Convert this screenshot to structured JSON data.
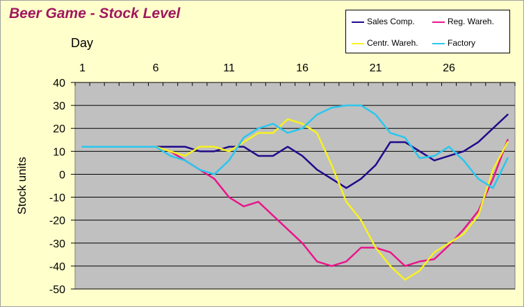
{
  "chart_data": {
    "type": "line",
    "title": "Beer Game - Stock Level",
    "xlabel": "Day",
    "ylabel": "Stock units",
    "x": [
      1,
      2,
      3,
      4,
      5,
      6,
      7,
      8,
      9,
      10,
      11,
      12,
      13,
      14,
      15,
      16,
      17,
      18,
      19,
      20,
      21,
      22,
      23,
      24,
      25,
      26,
      27,
      28,
      29,
      30
    ],
    "xticks": [
      1,
      6,
      11,
      16,
      21,
      26
    ],
    "xlim": [
      1,
      30
    ],
    "ylim": [
      -50,
      40
    ],
    "yticks": [
      40,
      30,
      20,
      10,
      0,
      -10,
      -20,
      -30,
      -40,
      -50
    ],
    "grid": true,
    "legend_position": "top-right",
    "series": [
      {
        "name": "Sales Comp.",
        "color": "#1f0a8c",
        "values": [
          12,
          12,
          12,
          12,
          12,
          12,
          12,
          12,
          10,
          10,
          12,
          12,
          8,
          8,
          12,
          8,
          2,
          -2,
          -6,
          -2,
          4,
          14,
          14,
          10,
          6,
          8,
          10,
          14,
          20,
          26
        ]
      },
      {
        "name": "Reg. Wareh.",
        "color": "#e8158a",
        "values": [
          12,
          12,
          12,
          12,
          12,
          12,
          10,
          6,
          2,
          -2,
          -10,
          -14,
          -12,
          -18,
          -24,
          -30,
          -38,
          -40,
          -38,
          -32,
          -32,
          -34,
          -40,
          -38,
          -37,
          -31,
          -24,
          -16,
          -2,
          15
        ]
      },
      {
        "name": "Centr. Wareh.",
        "color": "#f7f21f",
        "values": [
          12,
          12,
          12,
          12,
          12,
          12,
          10,
          8,
          12,
          12,
          10,
          14,
          18,
          18,
          24,
          22,
          18,
          4,
          -12,
          -20,
          -32,
          -40,
          -46,
          -42,
          -34,
          -30,
          -26,
          -18,
          2,
          14
        ]
      },
      {
        "name": "Factory",
        "color": "#29c7ee",
        "values": [
          12,
          12,
          12,
          12,
          12,
          12,
          8,
          6,
          2,
          0,
          6,
          16,
          20,
          22,
          18,
          20,
          26,
          29,
          30,
          30,
          26,
          18,
          16,
          7,
          8,
          12,
          6,
          -2,
          -6,
          7
        ]
      }
    ]
  }
}
